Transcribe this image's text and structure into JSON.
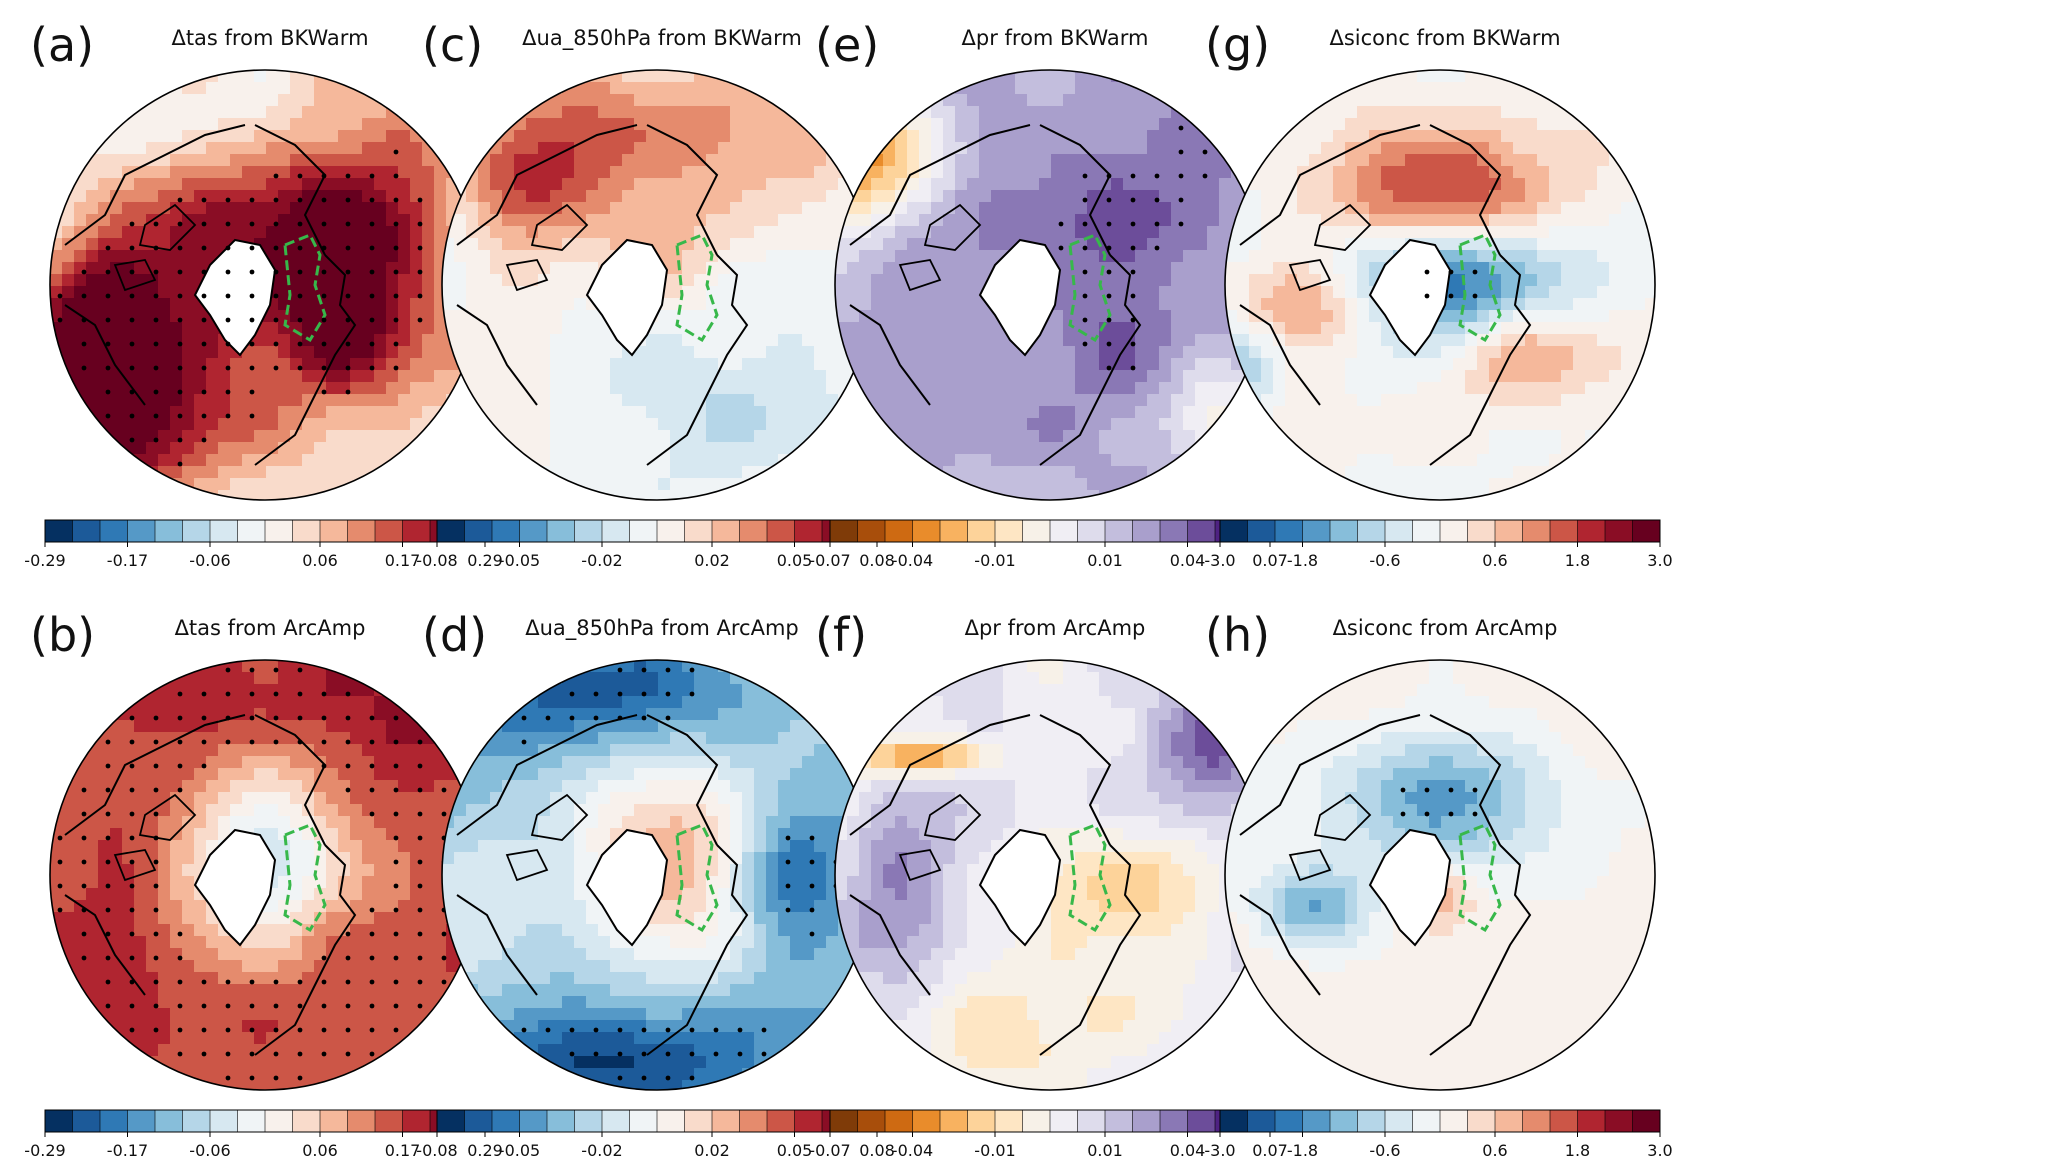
{
  "figure": {
    "panels": [
      {
        "id": "a",
        "letter": "(a)",
        "title": "Δtas from BKWarm",
        "palette": "RdBu_r",
        "pattern": "bk_tas",
        "ticks": [
          "-0.29",
          "-0.17",
          "-0.06",
          "0.06",
          "0.17",
          "0.29"
        ]
      },
      {
        "id": "c",
        "letter": "(c)",
        "title": "Δua_850hPa from BKWarm",
        "palette": "RdBu_r",
        "pattern": "bk_ua",
        "ticks": [
          "-0.08",
          "-0.05",
          "-0.02",
          "0.02",
          "0.05",
          "0.08"
        ]
      },
      {
        "id": "e",
        "letter": "(e)",
        "title": "Δpr from BKWarm",
        "palette": "PuOr",
        "pattern": "bk_pr",
        "ticks": [
          "-0.07",
          "-0.04",
          "-0.01",
          "0.01",
          "0.04",
          "0.07"
        ]
      },
      {
        "id": "g",
        "letter": "(g)",
        "title": "Δsiconc from BKWarm",
        "palette": "RdBu_r",
        "pattern": "bk_si",
        "ticks": [
          "-3.0",
          "-1.8",
          "-0.6",
          "0.6",
          "1.8",
          "3.0"
        ]
      },
      {
        "id": "b",
        "letter": "(b)",
        "title": "Δtas from ArcAmp",
        "palette": "RdBu_r",
        "pattern": "aa_tas",
        "ticks": [
          "-0.29",
          "-0.17",
          "-0.06",
          "0.06",
          "0.17",
          "0.29"
        ]
      },
      {
        "id": "d",
        "letter": "(d)",
        "title": "Δua_850hPa from ArcAmp",
        "palette": "RdBu_r",
        "pattern": "aa_ua",
        "ticks": [
          "-0.08",
          "-0.05",
          "-0.02",
          "0.02",
          "0.05",
          "0.08"
        ]
      },
      {
        "id": "f",
        "letter": "(f)",
        "title": "Δpr from ArcAmp",
        "palette": "PuOr",
        "pattern": "aa_pr",
        "ticks": [
          "-0.07",
          "-0.04",
          "-0.01",
          "0.01",
          "0.04",
          "0.07"
        ]
      },
      {
        "id": "h",
        "letter": "(h)",
        "title": "Δsiconc from ArcAmp",
        "palette": "RdBu_r",
        "pattern": "aa_si",
        "ticks": [
          "-3.0",
          "-1.8",
          "-0.6",
          "0.6",
          "1.8",
          "3.0"
        ]
      }
    ],
    "palettes": {
      "RdBu_r": [
        "#053061",
        "#1c5a99",
        "#2f79b5",
        "#5599c7",
        "#87beda",
        "#b5d6e8",
        "#d7e8f1",
        "#f0f4f6",
        "#f8f1ec",
        "#f9dbcb",
        "#f5b89b",
        "#e58b6d",
        "#cc5647",
        "#b02530",
        "#8a0d25",
        "#67001f"
      ],
      "PuOr": [
        "#7f3b08",
        "#a84e0b",
        "#ce6a12",
        "#e98c2b",
        "#f8b260",
        "#fdd39a",
        "#fee6c4",
        "#f7f1e8",
        "#f0eef4",
        "#dedcec",
        "#c3bedd",
        "#a99fcc",
        "#8a78b5",
        "#6c4d9a",
        "#4e2282",
        "#2d004b"
      ]
    },
    "colors": {
      "coast": "#000000",
      "region_outline": "#37b84a",
      "stipple": "#000000",
      "land_white": "#ffffff"
    }
  }
}
